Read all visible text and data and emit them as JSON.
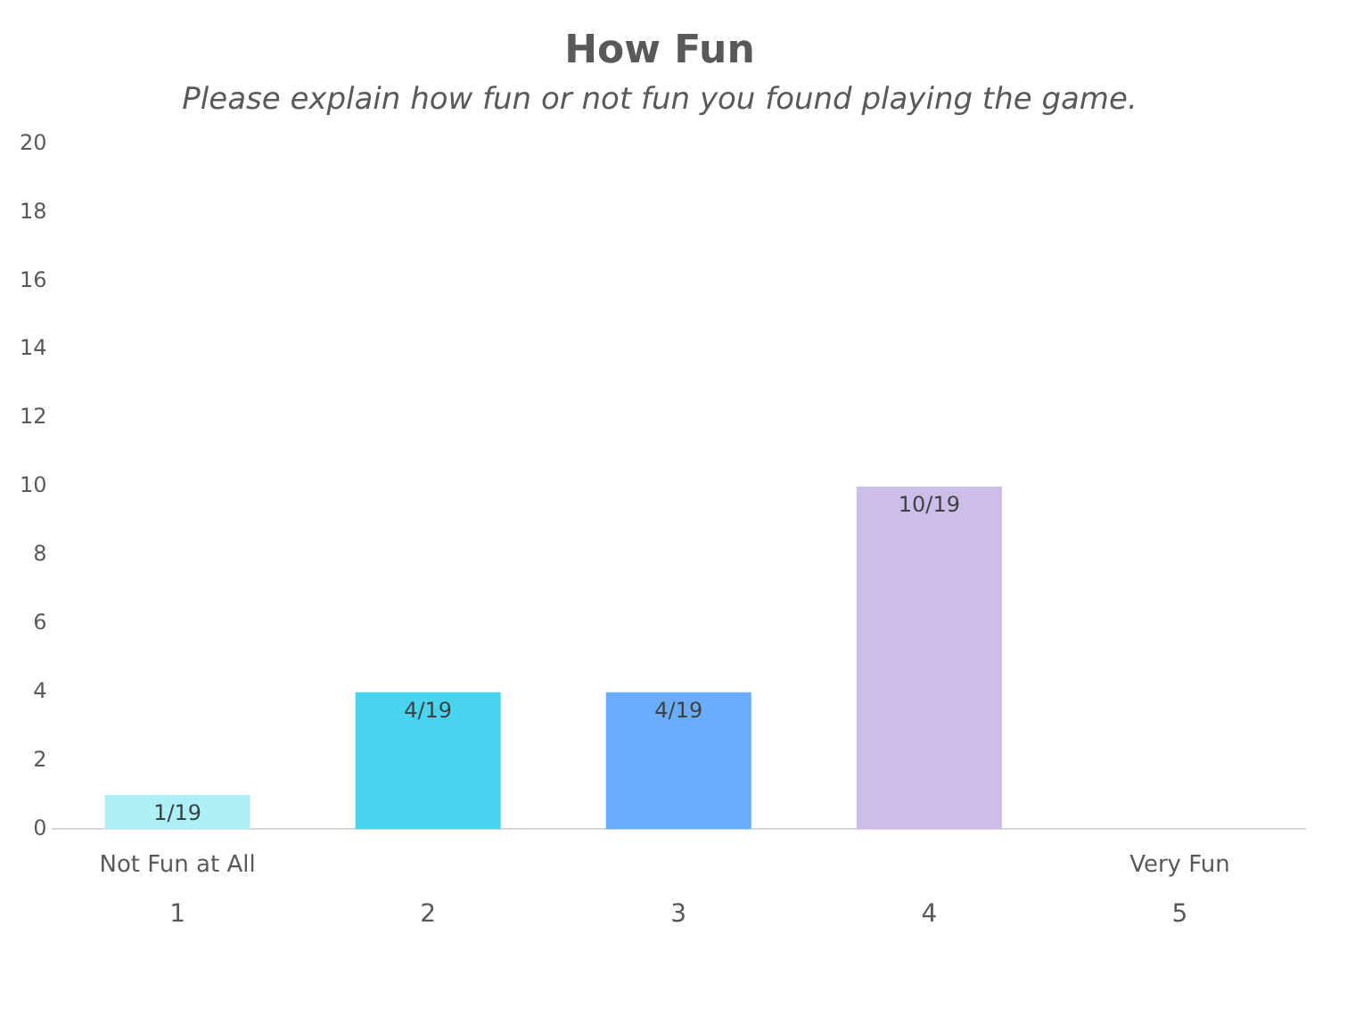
{
  "chart_data": {
    "type": "bar",
    "title": "How Fun",
    "subtitle": "Please explain how fun or not fun you found playing the game.",
    "categories": [
      "1",
      "2",
      "3",
      "4",
      "5"
    ],
    "values": [
      1,
      4,
      4,
      10,
      0
    ],
    "colors": [
      "#aef0f8",
      "#48d3ef",
      "#6aadfc",
      "#cdbde9",
      "#cdbde9"
    ],
    "value_labels": [
      "1/19",
      "4/19",
      "4/19",
      "10/19",
      null
    ],
    "annotations": [
      "Not Fun at All",
      "Very Fun"
    ],
    "ylim": [
      0,
      20
    ],
    "yticks": [
      0,
      2,
      4,
      6,
      8,
      10,
      12,
      14,
      16,
      18,
      20
    ],
    "grid": false,
    "legend": false
  }
}
